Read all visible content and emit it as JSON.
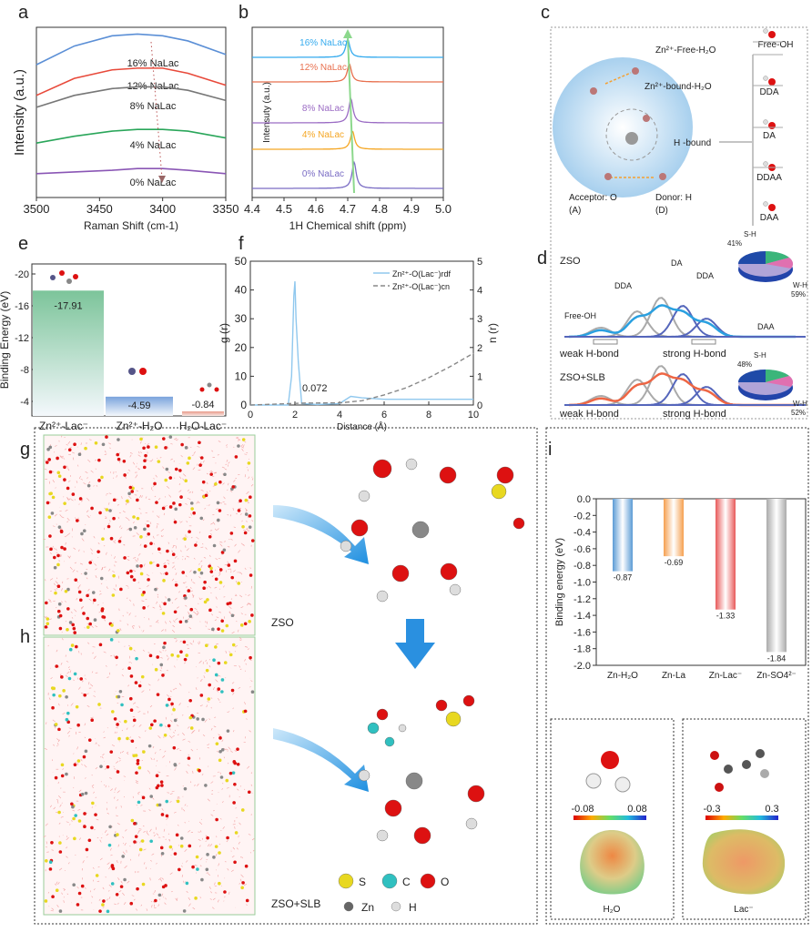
{
  "panel_labels": [
    "a",
    "b",
    "c",
    "d",
    "e",
    "f",
    "g",
    "h",
    "i"
  ],
  "colors": {
    "blue": "#5b8fd6",
    "red": "#e8493a",
    "gray": "#777777",
    "green": "#2aa65a",
    "purple": "#8a56b5",
    "cyan": "#33aaee",
    "orange": "#f5a623",
    "light_blue": "#90c8ee"
  },
  "chart_data": [
    {
      "id": "a",
      "type": "line",
      "xlabel": "Raman Shift (cm-1)",
      "ylabel": "Intensity (a.u.)",
      "xlim": [
        3500,
        3350
      ],
      "xticks": [
        3500,
        3450,
        3400,
        3350
      ],
      "series": [
        {
          "name": "16% NaLac",
          "color": "#5b8fd6",
          "x": [
            3500,
            3470,
            3440,
            3420,
            3400,
            3380,
            3350
          ],
          "y": [
            0.78,
            0.89,
            0.95,
            0.96,
            0.95,
            0.92,
            0.84
          ]
        },
        {
          "name": "12% NaLac",
          "color": "#e8493a",
          "x": [
            3500,
            3470,
            3440,
            3420,
            3400,
            3380,
            3350
          ],
          "y": [
            0.6,
            0.7,
            0.75,
            0.76,
            0.76,
            0.73,
            0.66
          ]
        },
        {
          "name": "8% NaLac",
          "color": "#777777",
          "x": [
            3500,
            3470,
            3440,
            3420,
            3400,
            3380,
            3350
          ],
          "y": [
            0.53,
            0.6,
            0.64,
            0.65,
            0.65,
            0.63,
            0.57
          ]
        },
        {
          "name": "4% NaLac",
          "color": "#2aa65a",
          "x": [
            3500,
            3470,
            3440,
            3420,
            3400,
            3380,
            3350
          ],
          "y": [
            0.32,
            0.36,
            0.39,
            0.4,
            0.4,
            0.39,
            0.35
          ]
        },
        {
          "name": "0% NaLac",
          "color": "#8a56b5",
          "x": [
            3500,
            3470,
            3440,
            3420,
            3400,
            3380,
            3350
          ],
          "y": [
            0.14,
            0.15,
            0.16,
            0.17,
            0.17,
            0.16,
            0.14
          ]
        }
      ]
    },
    {
      "id": "b",
      "type": "line",
      "xlabel": "1H Chemical shift (ppm)",
      "ylabel": "Intensuty (a.u.)",
      "xlim": [
        4.4,
        5.0
      ],
      "xticks": [
        4.4,
        4.5,
        4.6,
        4.7,
        4.8,
        4.9,
        5.0
      ],
      "series": [
        {
          "name": "16% NaLac",
          "color": "#33aaee",
          "peak": 4.7,
          "height": 0.9
        },
        {
          "name": "12% NaLac",
          "color": "#e8704f",
          "peak": 4.705,
          "height": 0.9
        },
        {
          "name": "8% NaLac",
          "color": "#9b6cc4",
          "peak": 4.71,
          "height": 1.2
        },
        {
          "name": "4% NaLac",
          "color": "#f5a623",
          "peak": 4.715,
          "height": 0.9
        },
        {
          "name": "0% NaLac",
          "color": "#7a6cc4",
          "peak": 4.72,
          "height": 1.3
        }
      ]
    },
    {
      "id": "e",
      "type": "bar",
      "ylabel": "Binding Energy (eV)",
      "ylim": [
        0,
        -22
      ],
      "yticks": [
        -20,
        -16,
        -12,
        -8,
        -4
      ],
      "categories": [
        "Zn²⁺-Lac⁻",
        "Zn²⁺-H₂O",
        "H₂O-Lac⁻"
      ],
      "values": [
        -17.91,
        -4.59,
        -0.84
      ],
      "labels": [
        "-17.91",
        "-4.59",
        "-0.84"
      ],
      "bar_colors": [
        "#7cc49a",
        "#7aa3dc",
        "#e89a8a"
      ]
    },
    {
      "id": "f",
      "type": "line",
      "xlabel": "Distance (Å)",
      "ylabel": "g (r)",
      "y2label": "n (r)",
      "xlim": [
        0,
        10
      ],
      "ylim": [
        0,
        50
      ],
      "y2lim": [
        0,
        5
      ],
      "xticks": [
        0,
        2,
        4,
        6,
        8,
        10
      ],
      "yticks": [
        0,
        10,
        20,
        30,
        40,
        50
      ],
      "y2ticks": [
        0,
        1,
        2,
        3,
        4,
        5
      ],
      "annotation": "0.072",
      "series": [
        {
          "name": "Zn²⁺-O(Lac⁻)rdf",
          "style": "solid",
          "color": "#90c8ee",
          "x": [
            0,
            1.7,
            1.85,
            1.95,
            2.0,
            2.05,
            2.15,
            2.3,
            3.0,
            4.0,
            4.5,
            5,
            6,
            8,
            10
          ],
          "y": [
            0,
            0,
            10,
            38,
            43,
            30,
            15,
            0.5,
            0.2,
            0.5,
            3,
            2.5,
            2,
            2,
            2
          ]
        },
        {
          "name": "Zn²⁺-O(Lac⁻)cn",
          "style": "dashed",
          "color": "#888888",
          "axis": "right",
          "x": [
            0,
            2.5,
            4,
            5,
            6,
            7,
            8,
            9,
            10
          ],
          "y": [
            0,
            0.07,
            0.072,
            0.15,
            0.35,
            0.6,
            0.95,
            1.35,
            1.8
          ]
        }
      ]
    },
    {
      "id": "i",
      "type": "bar",
      "ylabel": "Binding energy (eV)",
      "ylim": [
        0,
        -2.0
      ],
      "yticks": [
        "0.0",
        "-0.2",
        "-0.4",
        "-0.6",
        "-0.8",
        "-1.0",
        "-1.2",
        "-1.4",
        "-1.6",
        "-1.8",
        "-2.0"
      ],
      "categories": [
        "Zn-H₂O",
        "Zn-La",
        "Zn-Lac⁻",
        "Zn-SO4²⁻"
      ],
      "values": [
        -0.87,
        -0.69,
        -1.33,
        -1.84
      ],
      "labels": [
        "-0.87",
        "-0.69",
        "-1.33",
        "-1.84"
      ],
      "bar_colors": [
        "#5b9bd5",
        "#f5a050",
        "#e85a5a",
        "#aaaaaa"
      ]
    }
  ],
  "panel_c": {
    "free_h2o": "Zn²⁺-Free-H₂O",
    "bound_h2o": "Zn²⁺-bound-H₂O",
    "h_bound": "H -bound",
    "acceptor": "Acceptor: O",
    "acceptor_abbr": "(A)",
    "donor": "Donor: H",
    "donor_abbr": "(D)",
    "types": [
      "Free-OH",
      "DDA",
      "DA",
      "DDAA",
      "DAA"
    ]
  },
  "panel_d": {
    "zso": "ZSO",
    "zso_slb": "ZSO+SLB",
    "labels": {
      "free_oh": "Free-OH",
      "dda": "DDA",
      "da": "DA",
      "dda2": "DDA",
      "daa": "DAA"
    },
    "weak": "weak H-bond",
    "strong": "strong H-bond",
    "pie_zso": {
      "sh_label": "S-H",
      "sh": "41%",
      "wh_label": "W-H",
      "wh": "59%"
    },
    "pie_slb": {
      "sh_label": "S-H",
      "sh": "48%",
      "wh_label": "W-H",
      "wh": "52%"
    }
  },
  "panel_gh": {
    "g_label": "ZSO",
    "h_label": "ZSO+SLB",
    "legend": [
      "S",
      "C",
      "O",
      "Zn",
      "H"
    ]
  },
  "panel_i_esp": {
    "h2o": {
      "min": "-0.08",
      "max": "0.08",
      "name": "H₂O"
    },
    "lac": {
      "min": "-0.3",
      "max": "0.3",
      "name": "Lac⁻"
    }
  }
}
